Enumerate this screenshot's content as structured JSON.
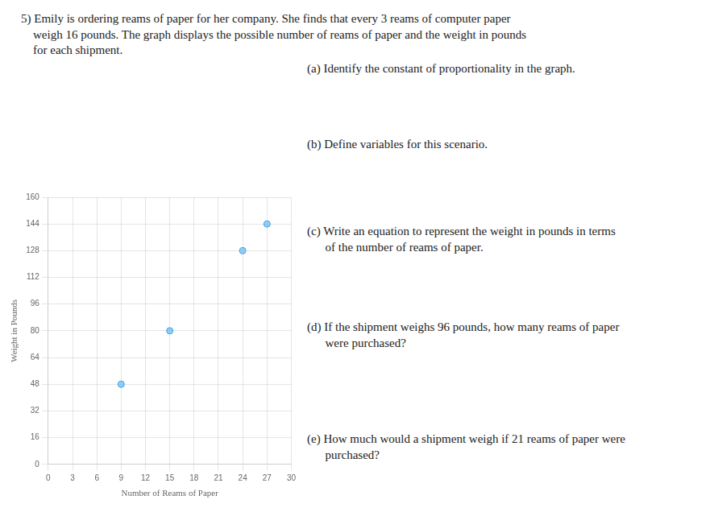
{
  "chart_data": {
    "type": "scatter",
    "title": "5) Emily is ordering reams of paper for her company. She finds that every 3 reams of computer paper\n    weigh 16 pounds. The graph displays the possible number of reams of paper and the weight in pounds\n    for each shipment.",
    "xlabel": "Number of Reams of Paper",
    "ylabel": "Weight in Pounds",
    "x": [
      9,
      15,
      24,
      27
    ],
    "values": [
      48,
      80,
      128,
      144
    ],
    "xlim": [
      0,
      30
    ],
    "ylim": [
      0,
      160
    ],
    "xticks": [
      0,
      3,
      6,
      9,
      12,
      15,
      18,
      21,
      24,
      27,
      30
    ],
    "yticks": [
      0,
      16,
      32,
      48,
      64,
      80,
      96,
      112,
      128,
      144,
      160
    ],
    "grid": true,
    "annotations": [
      "(a) Identify the constant of proportionality in the graph.",
      "(b) Define variables for this scenario.",
      "(c) Write an equation to represent the weight in pounds in terms\n      of the number of reams of paper.",
      "(d) If the shipment weighs 96 pounds, how many reams of paper\n      were purchased?",
      "(e) How much would a shipment weigh if 21 reams of paper were\n      purchased?"
    ]
  }
}
